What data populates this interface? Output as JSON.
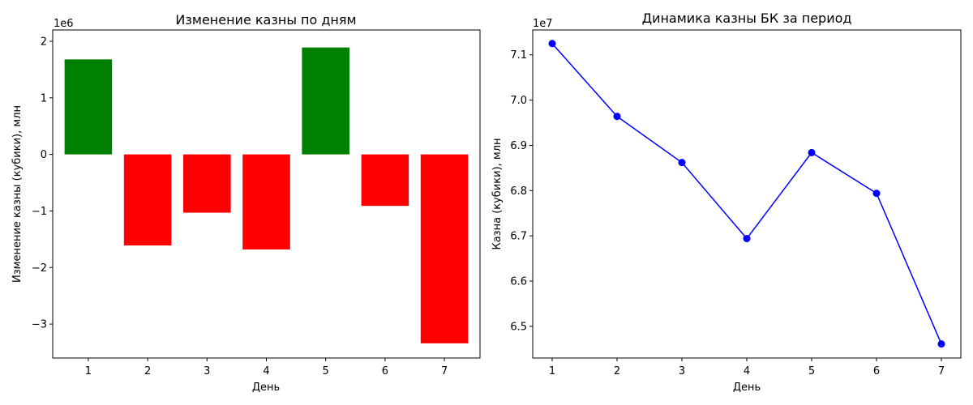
{
  "chart_data": [
    {
      "type": "bar",
      "title": "Изменение казны по дням",
      "xlabel": "День",
      "ylabel": "Изменение казны (кубики), млн",
      "offset_label": "1e6",
      "categories": [
        "1",
        "2",
        "3",
        "4",
        "5",
        "6",
        "7"
      ],
      "values": [
        1680000,
        -1610000,
        -1030000,
        -1680000,
        1890000,
        -910000,
        -3340000
      ],
      "ylim": [
        -3600000,
        2200000
      ],
      "yticks": [
        -3000000,
        -2000000,
        -1000000,
        0,
        1000000,
        2000000
      ],
      "ytick_labels": [
        "−3",
        "−2",
        "−1",
        "0",
        "1",
        "2"
      ],
      "colors": {
        "positive": "#008000",
        "negative": "#ff0000"
      },
      "grid": false,
      "legend": "none"
    },
    {
      "type": "line",
      "title": "Динамика казны БК за период",
      "xlabel": "День",
      "ylabel": "Казна (кубики), млн",
      "offset_label": "1e7",
      "x": [
        1,
        2,
        3,
        4,
        5,
        6,
        7
      ],
      "xtick_labels": [
        "1",
        "2",
        "3",
        "4",
        "5",
        "6",
        "7"
      ],
      "series": [
        {
          "values": [
            71250000,
            69640000,
            68620000,
            66940000,
            68840000,
            67940000,
            64610000
          ]
        }
      ],
      "ylim": [
        64300000,
        71550000
      ],
      "yticks": [
        65000000,
        66000000,
        67000000,
        68000000,
        69000000,
        70000000,
        71000000
      ],
      "ytick_labels": [
        "6.5",
        "6.6",
        "6.7",
        "6.8",
        "6.9",
        "7.0",
        "7.1"
      ],
      "color": "#0000ff",
      "marker": "circle",
      "grid": false,
      "legend": "none"
    }
  ]
}
